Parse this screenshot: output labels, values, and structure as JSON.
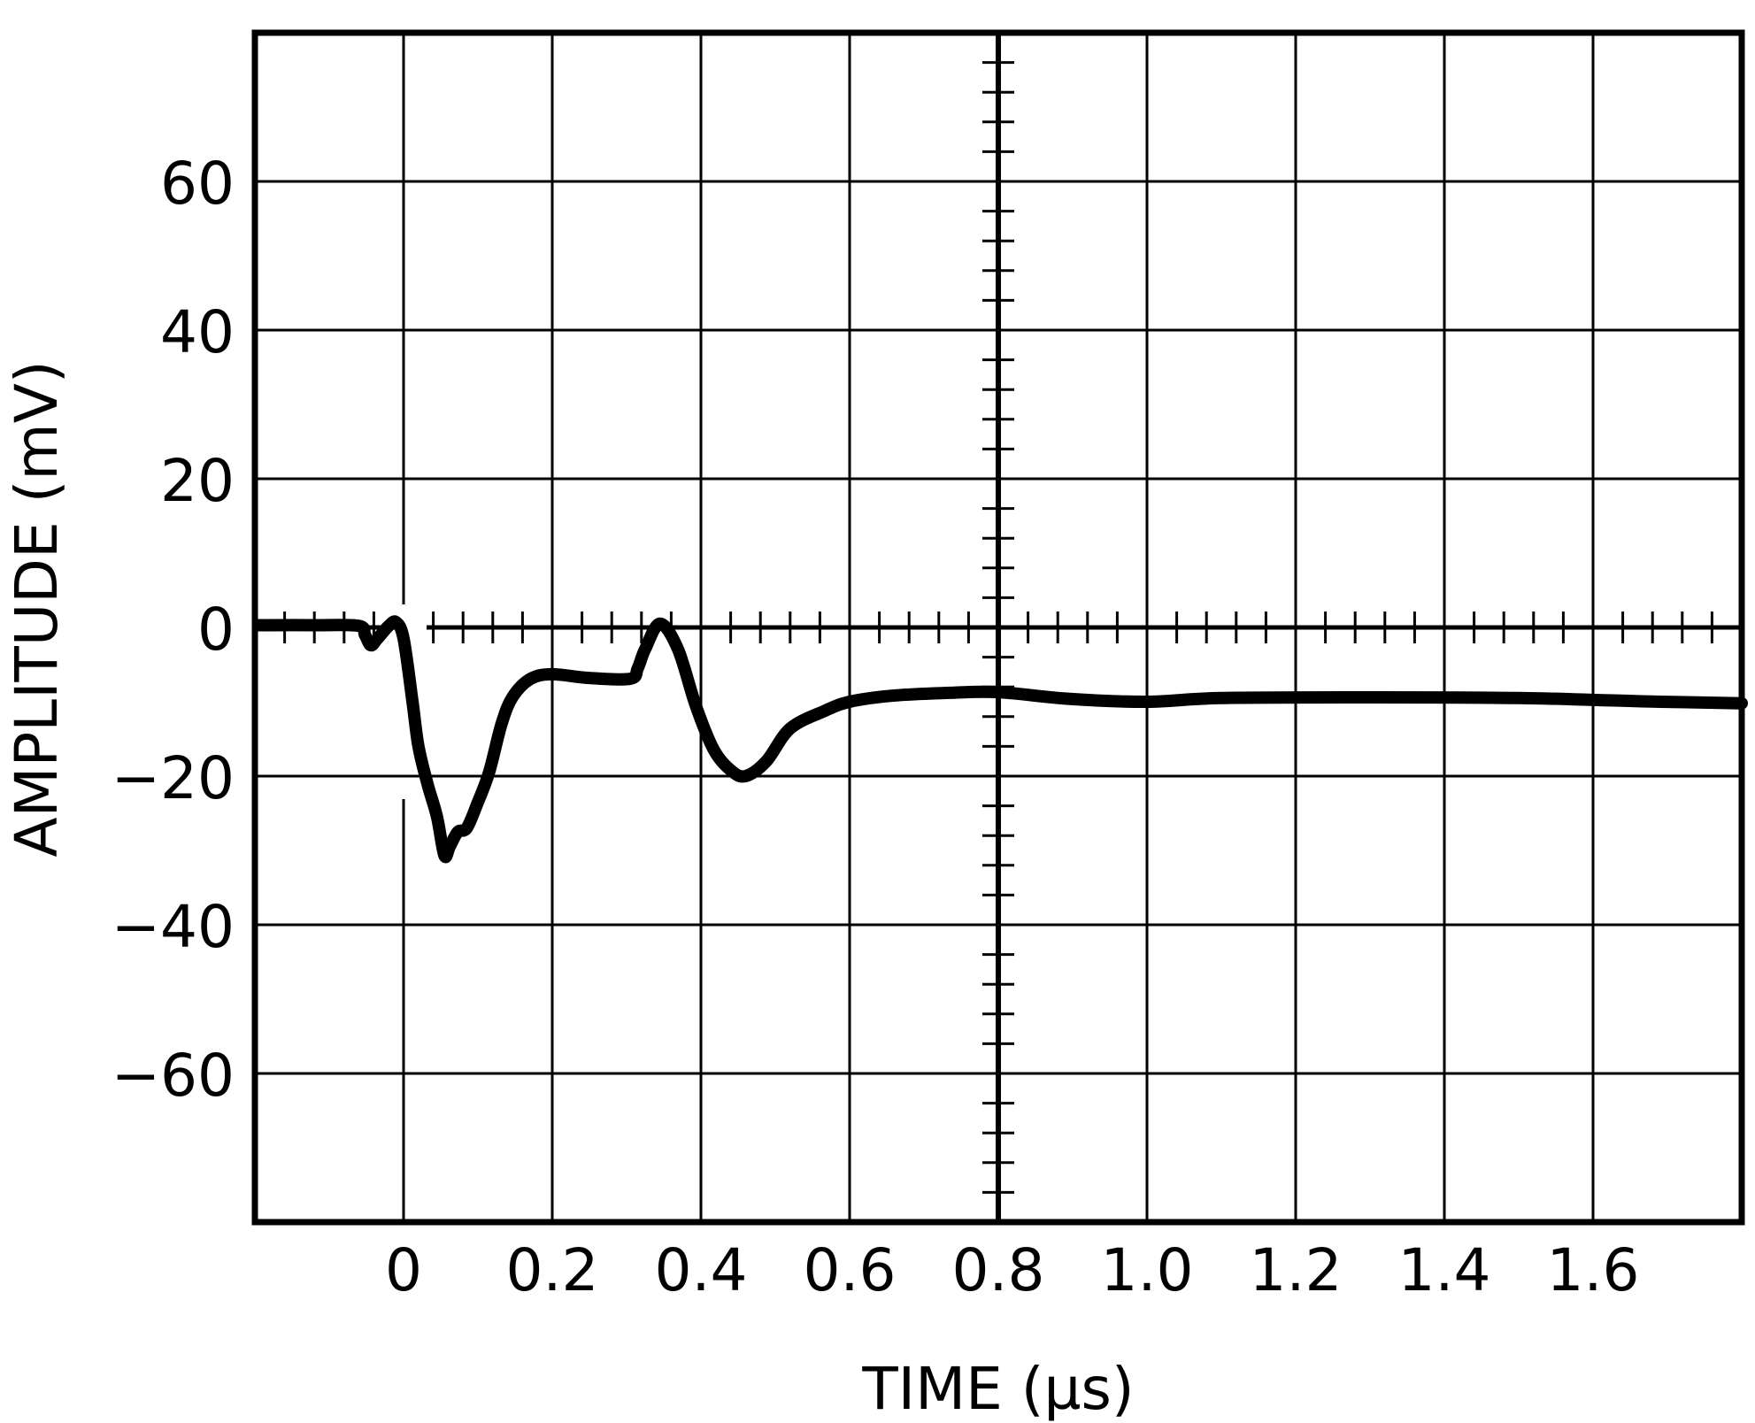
{
  "chart_data": {
    "type": "line",
    "title": "",
    "xlabel": "TIME (µs)",
    "ylabel": "AMPLITUDE (mV)",
    "xlim": [
      -0.2,
      1.8
    ],
    "ylim": [
      -80,
      80
    ],
    "grid": true,
    "legend": null,
    "x_ticks": [
      0,
      0.2,
      0.4,
      0.6,
      0.8,
      1.0,
      1.2,
      1.4,
      1.6
    ],
    "x_tick_labels": [
      "0",
      "0.2",
      "0.4",
      "0.6",
      "0.8",
      "1.0",
      "1.2",
      "1.4",
      "1.6"
    ],
    "y_ticks": [
      60,
      40,
      20,
      0,
      -20,
      -40,
      -60
    ],
    "y_tick_labels": [
      "60",
      "40",
      "20",
      "0",
      "-20",
      "-40",
      "-60"
    ],
    "grid_x_divisions": 10,
    "grid_y_divisions": 8,
    "minor_ticks_per_division": 5,
    "center_axes": {
      "x_axis_at_y": 0,
      "y_axis_at_x": 0.8
    },
    "series": [
      {
        "name": "Amplitude",
        "color": "#000000",
        "x": [
          -0.195,
          -0.12,
          -0.06,
          -0.052,
          -0.044,
          -0.035,
          -0.02,
          -0.01,
          0.0,
          0.012,
          0.02,
          0.032,
          0.045,
          0.055,
          0.062,
          0.073,
          0.085,
          0.1,
          0.115,
          0.132,
          0.147,
          0.171,
          0.2,
          0.25,
          0.305,
          0.315,
          0.325,
          0.345,
          0.369,
          0.393,
          0.417,
          0.44,
          0.46,
          0.488,
          0.52,
          0.567,
          0.6,
          0.655,
          0.734,
          0.8,
          0.894,
          1.0,
          1.1,
          1.3,
          1.5,
          1.69,
          1.8
        ],
        "y": [
          0.3,
          0.3,
          0.2,
          -1.0,
          -2.4,
          -1.5,
          0.2,
          0.7,
          -1.5,
          -10.0,
          -16.0,
          -21.0,
          -25.5,
          -30.7,
          -29.5,
          -27.5,
          -27.0,
          -23.5,
          -19.5,
          -12.9,
          -9.3,
          -6.9,
          -6.3,
          -6.8,
          -6.9,
          -5.5,
          -2.9,
          0.5,
          -2.9,
          -10.5,
          -16.4,
          -19.2,
          -20.0,
          -18.0,
          -13.6,
          -11.2,
          -10.0,
          -9.2,
          -8.8,
          -8.7,
          -9.6,
          -10.0,
          -9.5,
          -9.4,
          -9.5,
          -10.0,
          -10.2
        ]
      }
    ]
  },
  "labels": {
    "x_axis_title": "TIME (µs)",
    "y_axis_title": "AMPLITUDE (mV)"
  },
  "colors": {
    "background": "#ffffff",
    "ink": "#000000"
  }
}
